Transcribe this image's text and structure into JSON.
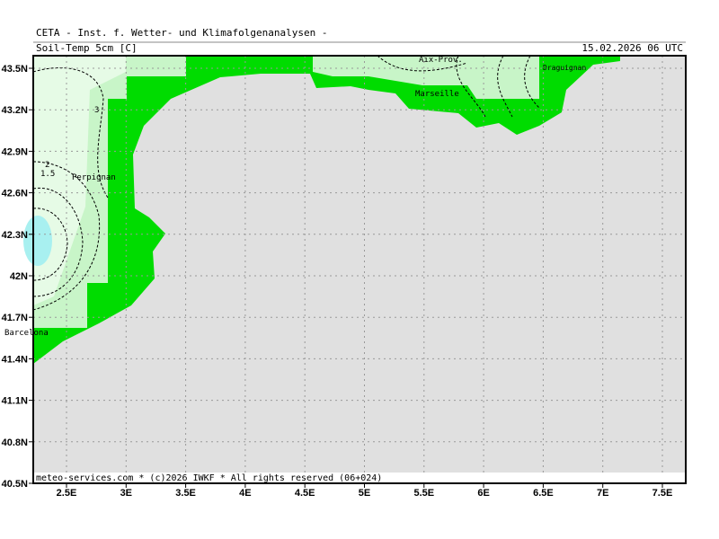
{
  "header": {
    "title": "CETA - Inst. f. Wetter- und Klimafolgenanalysen -",
    "parameter": "Soil-Temp 5cm [C]",
    "valid_time": "15.02.2026 06 UTC"
  },
  "map": {
    "lon_labels": [
      "2.5E",
      "3E",
      "3.5E",
      "4E",
      "4.5E",
      "5E",
      "5.5E",
      "6E",
      "6.5E",
      "7E",
      "7.5E"
    ],
    "lat_labels": [
      "43.5N",
      "43.2N",
      "42.9N",
      "42.6N",
      "42.3N",
      "42N",
      "41.7N",
      "41.4N",
      "41.1N",
      "40.8N",
      "40.5N"
    ],
    "places": [
      "Aix-Prov.",
      "Marseille",
      "Draguignan",
      "Perpignan",
      "Barcelona"
    ],
    "contour_labels": [
      "3",
      "2",
      "1.5"
    ]
  },
  "footer": "meteo-services.com * (c)2026 IWKF * All rights reserved (06+024)"
}
